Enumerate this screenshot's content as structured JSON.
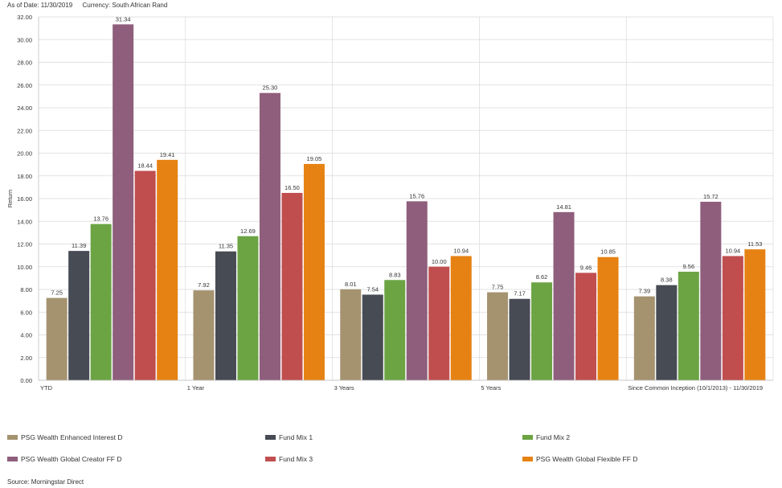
{
  "header": {
    "as_of": "As of Date: 11/30/2019",
    "currency": "Currency: South African Rand"
  },
  "footer": {
    "source": "Source: Morningstar Direct"
  },
  "chart_data": {
    "type": "bar",
    "title": "",
    "xlabel": "",
    "ylabel": "Return",
    "ylim": [
      0,
      32
    ],
    "yticks": [
      "0.00",
      "2.00",
      "4.00",
      "6.00",
      "8.00",
      "10.00",
      "12.00",
      "14.00",
      "16.00",
      "18.00",
      "20.00",
      "22.00",
      "24.00",
      "26.00",
      "28.00",
      "30.00",
      "32.00"
    ],
    "categories": [
      "YTD",
      "1 Year",
      "3 Years",
      "5 Years",
      "Since Common Inception (10/1/2013) - 11/30/2019"
    ],
    "series": [
      {
        "name": "PSG Wealth Enhanced Interest D",
        "color": "#A59370",
        "values": [
          7.25,
          7.92,
          8.01,
          7.75,
          7.39
        ]
      },
      {
        "name": "Fund Mix 1",
        "color": "#474B53",
        "values": [
          11.39,
          11.35,
          7.54,
          7.17,
          8.38
        ]
      },
      {
        "name": "Fund Mix 2",
        "color": "#6CA444",
        "values": [
          13.76,
          12.69,
          8.83,
          8.62,
          9.56
        ]
      },
      {
        "name": "PSG Wealth Global Creator FF D",
        "color": "#8F5E7C",
        "values": [
          31.34,
          25.3,
          15.76,
          14.81,
          15.72
        ]
      },
      {
        "name": "Fund Mix 3",
        "color": "#C04E4F",
        "values": [
          18.44,
          16.5,
          10.0,
          9.46,
          10.94
        ]
      },
      {
        "name": "PSG Wealth Global Flexible FF D",
        "color": "#E68213",
        "values": [
          19.41,
          19.05,
          10.94,
          10.85,
          11.53
        ]
      }
    ],
    "grid": true,
    "legend_position": "bottom"
  }
}
